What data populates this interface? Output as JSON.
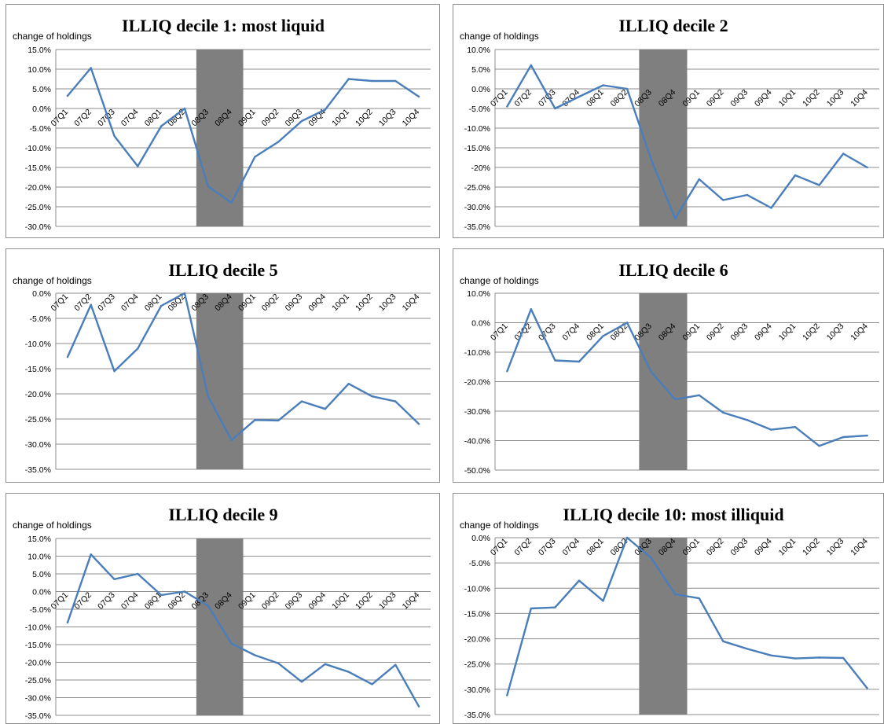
{
  "chart_data": [
    {
      "type": "line",
      "title": "ILLIQ decile 1: most liquid",
      "ylabel": "change of holdings",
      "categories": [
        "07Q1",
        "07Q2",
        "07Q3",
        "07Q4",
        "08Q1",
        "08Q2",
        "08Q3",
        "08Q4",
        "09Q1",
        "09Q2",
        "09Q3",
        "09Q4",
        "10Q1",
        "10Q2",
        "10Q3",
        "10Q4"
      ],
      "values": [
        3.2,
        10.3,
        -7.0,
        -14.7,
        -4.5,
        0.0,
        -19.8,
        -24.0,
        -12.3,
        -8.5,
        -3.2,
        -0.3,
        7.5,
        7.0,
        7.0,
        3.0
      ],
      "ylim": [
        -30,
        15
      ],
      "yticks": [
        "15.0%",
        "10.0%",
        "5.0%",
        "0.0%",
        "-5.0%",
        "-10.0%",
        "-15.0%",
        "-20.0%",
        "-25.0%",
        "-30.0%"
      ],
      "shaded_range": [
        "08Q3",
        "08Q4"
      ],
      "grid": "horizontal",
      "color": "#4a7ebb"
    },
    {
      "type": "line",
      "title": "ILLIQ decile 2",
      "ylabel": "change of holdings",
      "categories": [
        "07Q1",
        "07Q2",
        "07Q3",
        "07Q4",
        "08Q1",
        "08Q2",
        "08Q3",
        "08Q4",
        "09Q1",
        "09Q2",
        "09Q3",
        "09Q4",
        "10Q1",
        "10Q2",
        "10Q3",
        "10Q4"
      ],
      "values": [
        -4.5,
        6.0,
        -5.0,
        -2.0,
        0.9,
        0.0,
        -18.0,
        -33.0,
        -23.0,
        -28.3,
        -27.0,
        -30.3,
        -22.0,
        -24.5,
        -16.5,
        -20.0
      ],
      "ylim": [
        -35,
        10
      ],
      "yticks": [
        "10.0%",
        "5.0%",
        "0.0%",
        "-5.0%",
        "-10.0%",
        "-15.0%",
        "-20%",
        "-25.0%",
        "-30.0%",
        "-35.0%"
      ],
      "shaded_range": [
        "08Q3",
        "08Q4"
      ],
      "grid": "horizontal",
      "color": "#4a7ebb"
    },
    {
      "type": "line",
      "title": "ILLIQ decile 5",
      "ylabel": "change of holdings",
      "categories": [
        "07Q1",
        "07Q2",
        "07Q3",
        "07Q4",
        "08Q1",
        "08Q2",
        "08Q3",
        "08Q4",
        "09Q1",
        "09Q2",
        "09Q3",
        "09Q4",
        "10Q1",
        "10Q2",
        "10Q3",
        "10Q4"
      ],
      "values": [
        -12.7,
        -2.3,
        -15.5,
        -11.0,
        -2.5,
        0.0,
        -20.5,
        -29.2,
        -25.2,
        -25.3,
        -21.5,
        -23.0,
        -18.0,
        -20.5,
        -21.5,
        -26.0
      ],
      "ylim": [
        -35,
        0
      ],
      "yticks": [
        "0.0%",
        "-5.0%",
        "-10.0%",
        "-15.0%",
        "-20.0%",
        "-25.0%",
        "-30.0%",
        "-35.0%"
      ],
      "shaded_range": [
        "08Q3",
        "08Q4"
      ],
      "grid": "horizontal",
      "color": "#4a7ebb"
    },
    {
      "type": "line",
      "title": "ILLIQ decile 6",
      "ylabel": "change of holdings",
      "categories": [
        "07Q1",
        "07Q2",
        "07Q3",
        "07Q4",
        "08Q1",
        "08Q2",
        "08Q3",
        "08Q4",
        "09Q1",
        "09Q2",
        "09Q3",
        "09Q4",
        "10Q1",
        "10Q2",
        "10Q3",
        "10Q4"
      ],
      "values": [
        -16.5,
        4.6,
        -12.8,
        -13.2,
        -4.5,
        0.0,
        -16.7,
        -26.0,
        -24.6,
        -30.5,
        -33.0,
        -36.3,
        -35.4,
        -41.8,
        -38.8,
        -38.3
      ],
      "ylim": [
        -50,
        10
      ],
      "yticks": [
        "10.0%",
        "0.0%",
        "-10.0%",
        "-20.0%",
        "-30.0%",
        "-40.0%",
        "-50.0%"
      ],
      "shaded_range": [
        "08Q3",
        "08Q4"
      ],
      "grid": "horizontal",
      "color": "#4a7ebb"
    },
    {
      "type": "line",
      "title": "ILLIQ decile 9",
      "ylabel": "change of holdings",
      "categories": [
        "07Q1",
        "07Q2",
        "07Q3",
        "07Q4",
        "08Q1",
        "08Q2",
        "08Q3",
        "08Q4",
        "09Q1",
        "09Q2",
        "09Q3",
        "09Q4",
        "10Q1",
        "10Q2",
        "10Q3",
        "10Q4"
      ],
      "values": [
        -8.8,
        10.5,
        3.5,
        5.0,
        -1.0,
        0.0,
        -4.0,
        -14.7,
        -18.0,
        -20.3,
        -25.5,
        -20.5,
        -22.7,
        -26.2,
        -20.7,
        -32.5
      ],
      "ylim": [
        -35,
        15
      ],
      "yticks": [
        "15.0%",
        "10.0%",
        "5.0%",
        "0.0%",
        "-5.0%",
        "-10.0%",
        "-15.0%",
        "-20.0%",
        "-25.0%",
        "-30.0%",
        "-35.0%"
      ],
      "shaded_range": [
        "08Q3",
        "08Q4"
      ],
      "grid": "horizontal",
      "color": "#4a7ebb"
    },
    {
      "type": "line",
      "title": "ILLIQ decile 10: most illiquid",
      "ylabel": "change of holdings",
      "categories": [
        "07Q1",
        "07Q2",
        "07Q3",
        "07Q4",
        "08Q1",
        "08Q2",
        "08Q3",
        "08Q4",
        "09Q1",
        "09Q2",
        "09Q3",
        "09Q4",
        "10Q1",
        "10Q2",
        "10Q3",
        "10Q4"
      ],
      "values": [
        -31.2,
        -14.0,
        -13.8,
        -8.5,
        -12.5,
        0.0,
        -4.0,
        -11.2,
        -12.0,
        -20.5,
        -22.0,
        -23.3,
        -23.9,
        -23.7,
        -23.8,
        -29.8
      ],
      "ylim": [
        -35,
        0
      ],
      "yticks": [
        "0.0%",
        "-5.0%",
        "-10.0%",
        "-15.0%",
        "-20.0%",
        "-25.0%",
        "-30.0%",
        "-35.0%"
      ],
      "shaded_range": [
        "08Q3",
        "08Q4"
      ],
      "grid": "horizontal",
      "color": "#4a7ebb"
    }
  ]
}
